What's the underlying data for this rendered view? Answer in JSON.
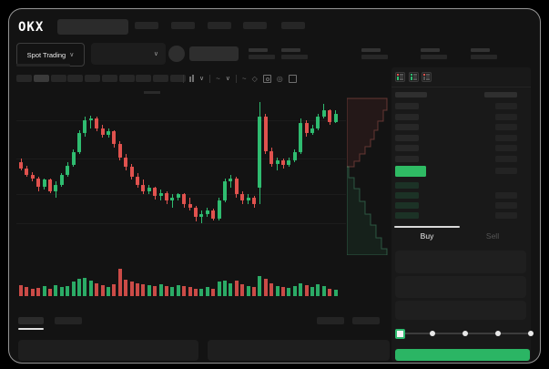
{
  "window": {
    "brand": "OKX"
  },
  "header": {
    "nav_count": 5
  },
  "market_bar": {
    "mode_label": "Spot Trading",
    "stats_count": 5
  },
  "chart_toolbar": {
    "interval_count": 10,
    "active_interval_index": 1
  },
  "trade_panel": {
    "buy_label": "Buy",
    "sell_label": "Sell",
    "field_count": 3,
    "slider_stops": 5,
    "slider_value_index": 0
  },
  "order_book": {
    "mode_icons": [
      [
        "red",
        "green",
        "green"
      ],
      [
        "green",
        "green",
        "green"
      ],
      [
        "red",
        "grey",
        "grey"
      ]
    ],
    "ask_rows": 6,
    "bid_rows": 4,
    "bid_amount_rows": [
      false,
      true,
      true,
      true
    ],
    "last_price_highlighted": true
  },
  "bottom_bar": {
    "left_tabs": 2,
    "right_tabs": 2,
    "panels": 2
  },
  "colors": {
    "green": "#2FBC70",
    "red": "#E0524E",
    "button_green": "#2BB564",
    "highlight_green": "#2FBB64",
    "bid_row_green": "#1C3226",
    "tab_indicator": "#D9D9D9"
  },
  "chart_data": {
    "type": "candlestick",
    "title": "",
    "note": "No axis labels visible; OHLC read from pixels on relative 0-100 scale",
    "ylim": [
      0,
      100
    ],
    "grid_prices": [
      78,
      54,
      32,
      14
    ],
    "candles": [
      [
        52,
        54,
        47,
        48
      ],
      [
        48,
        50,
        43,
        44
      ],
      [
        44,
        46,
        40,
        42
      ],
      [
        42,
        43,
        34,
        37
      ],
      [
        37,
        42,
        35,
        41
      ],
      [
        41,
        42,
        33,
        34
      ],
      [
        34,
        40,
        30,
        38
      ],
      [
        38,
        45,
        37,
        44
      ],
      [
        44,
        52,
        43,
        50
      ],
      [
        50,
        60,
        49,
        58
      ],
      [
        58,
        72,
        57,
        70
      ],
      [
        70,
        80,
        68,
        78
      ],
      [
        78,
        81,
        73,
        79
      ],
      [
        79,
        80,
        71,
        73
      ],
      [
        73,
        75,
        67,
        69
      ],
      [
        69,
        73,
        67,
        71
      ],
      [
        71,
        72,
        61,
        63
      ],
      [
        63,
        65,
        53,
        55
      ],
      [
        55,
        57,
        47,
        49
      ],
      [
        49,
        51,
        41,
        43
      ],
      [
        43,
        45,
        36,
        38
      ],
      [
        38,
        41,
        32,
        34
      ],
      [
        34,
        38,
        32,
        36
      ],
      [
        36,
        37,
        29,
        31
      ],
      [
        31,
        35,
        28,
        33
      ],
      [
        33,
        34,
        26,
        28
      ],
      [
        28,
        32,
        24,
        30
      ],
      [
        30,
        33,
        28,
        32
      ],
      [
        32,
        33,
        24,
        26
      ],
      [
        26,
        30,
        22,
        24
      ],
      [
        24,
        25,
        15,
        18
      ],
      [
        18,
        22,
        14,
        20
      ],
      [
        20,
        24,
        18,
        22
      ],
      [
        22,
        23,
        16,
        17
      ],
      [
        17,
        30,
        16,
        28
      ],
      [
        28,
        42,
        27,
        40
      ],
      [
        40,
        44,
        36,
        42
      ],
      [
        42,
        43,
        30,
        32
      ],
      [
        32,
        34,
        26,
        28
      ],
      [
        28,
        32,
        26,
        30
      ],
      [
        30,
        31,
        24,
        26
      ],
      [
        36,
        89,
        26,
        80
      ],
      [
        80,
        82,
        57,
        59
      ],
      [
        59,
        61,
        49,
        51
      ],
      [
        51,
        55,
        47,
        53
      ],
      [
        53,
        54,
        48,
        50
      ],
      [
        50,
        55,
        49,
        53
      ],
      [
        53,
        60,
        52,
        58
      ],
      [
        58,
        79,
        57,
        76
      ],
      [
        76,
        78,
        68,
        70
      ],
      [
        70,
        75,
        69,
        73
      ],
      [
        73,
        82,
        72,
        80
      ],
      [
        80,
        88,
        79,
        84
      ],
      [
        84,
        85,
        75,
        77
      ],
      [
        77,
        84,
        76,
        82
      ]
    ],
    "volumes": [
      40,
      32,
      26,
      30,
      36,
      28,
      40,
      34,
      38,
      52,
      62,
      68,
      56,
      46,
      40,
      34,
      44,
      100,
      60,
      52,
      48,
      44,
      40,
      36,
      42,
      38,
      34,
      40,
      36,
      32,
      28,
      26,
      32,
      28,
      52,
      58,
      48,
      56,
      44,
      36,
      32,
      72,
      64,
      48,
      38,
      33,
      30,
      36,
      48,
      40,
      34,
      42,
      38,
      28,
      24
    ],
    "depth": {
      "asks": [
        [
          44,
          13
        ],
        [
          40,
          26
        ],
        [
          34,
          38
        ],
        [
          30,
          48
        ],
        [
          26,
          58
        ],
        [
          20,
          66
        ],
        [
          14,
          74
        ],
        [
          8,
          82
        ],
        [
          2,
          88
        ]
      ],
      "bids": [
        [
          2,
          88
        ],
        [
          8,
          100
        ],
        [
          14,
          112
        ],
        [
          20,
          126
        ],
        [
          26,
          140
        ],
        [
          32,
          152
        ],
        [
          38,
          166
        ],
        [
          44,
          178
        ]
      ]
    }
  }
}
